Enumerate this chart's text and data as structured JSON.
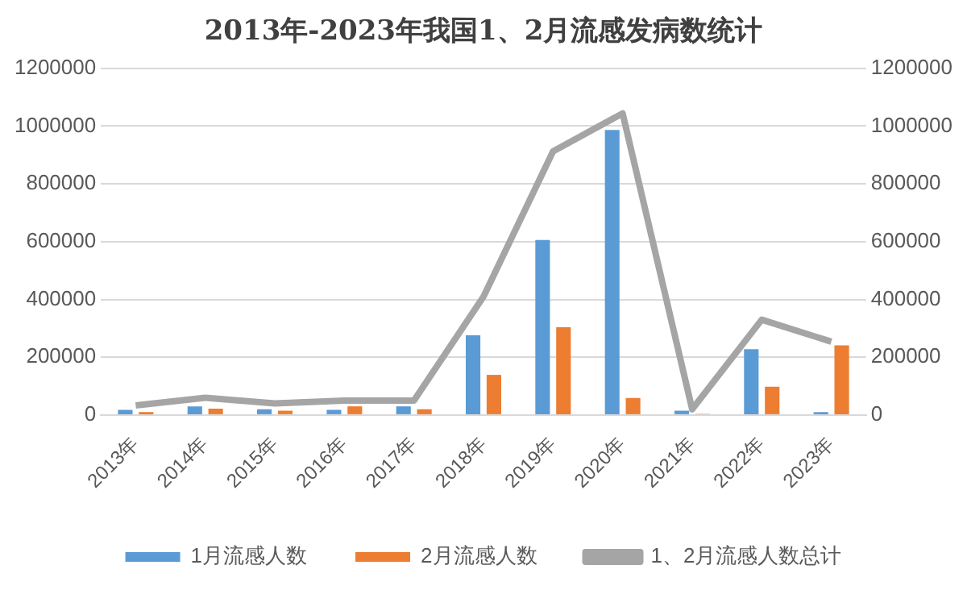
{
  "chart_data": {
    "type": "bar",
    "title": "2013年-2023年我国1、2月流感发病数统计",
    "categories": [
      "2013年",
      "2014年",
      "2015年",
      "2016年",
      "2017年",
      "2018年",
      "2019年",
      "2020年",
      "2021年",
      "2022年",
      "2023年"
    ],
    "series": [
      {
        "name": "1月流感人数",
        "color": "#5b9bd5",
        "values": [
          18000,
          30000,
          20000,
          18000,
          30000,
          276000,
          606000,
          987000,
          15000,
          228000,
          10000
        ]
      },
      {
        "name": "2月流感人数",
        "color": "#ed7d31",
        "values": [
          10000,
          22000,
          15000,
          30000,
          20000,
          139000,
          304000,
          59000,
          4000,
          98000,
          241000
        ]
      },
      {
        "name": "1、2月流感人数总计",
        "type": "line",
        "color": "#a5a5a5",
        "values": [
          33000,
          60000,
          40000,
          50000,
          50000,
          410000,
          913000,
          1044000,
          20000,
          330000,
          254000
        ]
      }
    ],
    "ylim": [
      0,
      1200000
    ],
    "yticks": [
      0,
      200000,
      400000,
      600000,
      800000,
      1000000,
      1200000
    ],
    "y2lim": [
      0,
      1200000
    ],
    "y2ticks": [
      0,
      200000,
      400000,
      600000,
      800000,
      1000000,
      1200000
    ],
    "grid": "y",
    "legend": "bottom",
    "marker": "none"
  }
}
